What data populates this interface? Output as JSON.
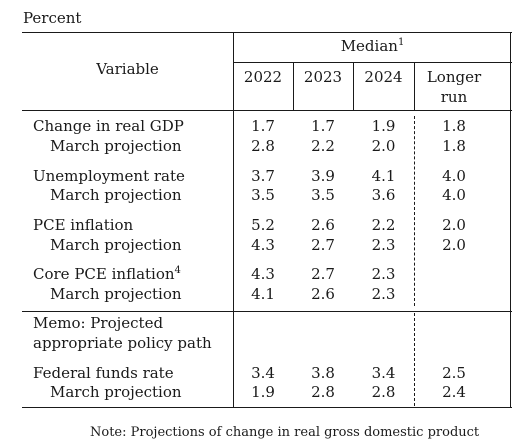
{
  "caption": "Percent",
  "header": {
    "variable": "Variable",
    "median": "Median",
    "median_sup": "1",
    "columns": [
      "2022",
      "2023",
      "2024",
      "Longer",
      "run"
    ]
  },
  "rows": [
    {
      "label": "Change in real GDP",
      "sup": "",
      "values": [
        "1.7",
        "1.7",
        "1.9",
        "1.8"
      ]
    },
    {
      "label": "March projection",
      "sup": "",
      "values": [
        "2.8",
        "2.2",
        "2.0",
        "1.8"
      ]
    },
    {
      "label": "Unemployment rate",
      "sup": "",
      "values": [
        "3.7",
        "3.9",
        "4.1",
        "4.0"
      ]
    },
    {
      "label": "March projection",
      "sup": "",
      "values": [
        "3.5",
        "3.5",
        "3.6",
        "4.0"
      ]
    },
    {
      "label": "PCE inflation",
      "sup": "",
      "values": [
        "5.2",
        "2.6",
        "2.2",
        "2.0"
      ]
    },
    {
      "label": "March projection",
      "sup": "",
      "values": [
        "4.3",
        "2.7",
        "2.3",
        "2.0"
      ]
    },
    {
      "label": "Core PCE inflation",
      "sup": "4",
      "values": [
        "4.3",
        "2.7",
        "2.3",
        ""
      ]
    },
    {
      "label": "March projection",
      "sup": "",
      "values": [
        "4.1",
        "2.6",
        "2.3",
        ""
      ]
    }
  ],
  "memo": [
    "Memo: Projected",
    "appropriate policy path"
  ],
  "policy_rows": [
    {
      "label": "Federal funds rate",
      "values": [
        "3.4",
        "3.8",
        "3.4",
        "2.5"
      ]
    },
    {
      "label": "March projection",
      "values": [
        "1.9",
        "2.8",
        "2.8",
        "2.4"
      ]
    }
  ],
  "footnote_fragment": "Note: Projections of change in real gross domestic product"
}
